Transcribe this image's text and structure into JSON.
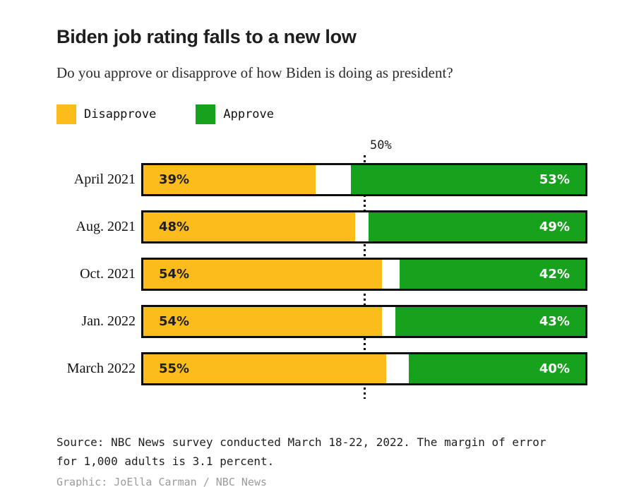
{
  "header": {
    "title": "Biden job rating falls to a new low",
    "subtitle": "Do you approve or disapprove of how Biden is doing as president?"
  },
  "legend": {
    "items": [
      {
        "label": "Disapprove",
        "color": "#FBBC1C"
      },
      {
        "label": "Approve",
        "color": "#17A21E"
      }
    ]
  },
  "chart_data": {
    "type": "bar",
    "orientation": "horizontal",
    "stacked": true,
    "categories": [
      "April 2021",
      "Aug. 2021",
      "Oct. 2021",
      "Jan. 2022",
      "March 2022"
    ],
    "series": [
      {
        "name": "Disapprove",
        "color": "#FBBC1C",
        "label_color": "#1E1E1E",
        "values": [
          39,
          48,
          54,
          54,
          55
        ]
      },
      {
        "name": "Approve",
        "color": "#17A21E",
        "label_color": "#FFFFFF",
        "values": [
          53,
          49,
          42,
          43,
          40
        ]
      }
    ],
    "value_suffix": "%",
    "xlim": [
      0,
      100
    ],
    "reference_line": {
      "value": 50,
      "label": "50%"
    },
    "bar_border_color": "#0D0D0D",
    "track_background": "#FFFFFF",
    "grid": false,
    "legend_position": "top"
  },
  "footer": {
    "source_lines": [
      "Source: NBC News survey conducted March 18-22, 2022. The margin of error",
      "for 1,000 adults is 3.1 percent."
    ],
    "credit": "Graphic: JoElla Carman / NBC News"
  }
}
